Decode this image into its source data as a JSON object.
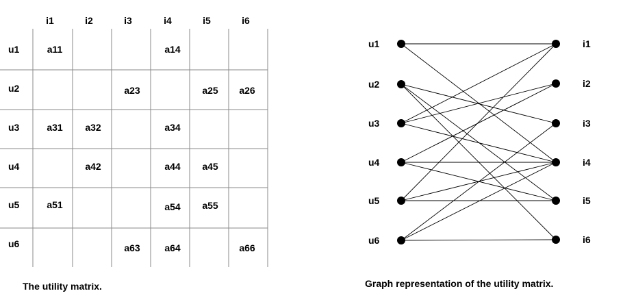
{
  "matrix": {
    "column_labels": [
      "i1",
      "i2",
      "i3",
      "i4",
      "i5",
      "i6"
    ],
    "row_labels": [
      "u1",
      "u2",
      "u3",
      "u4",
      "u5",
      "u6"
    ],
    "cells": [
      [
        "a11",
        "",
        "",
        "a14",
        "",
        ""
      ],
      [
        "",
        "",
        "a23",
        "",
        "a25",
        "a26"
      ],
      [
        "a31",
        "a32",
        "",
        "a34",
        "",
        ""
      ],
      [
        "",
        "a42",
        "",
        "a44",
        "a45",
        ""
      ],
      [
        "a51",
        "",
        "",
        "a54",
        "a55",
        ""
      ],
      [
        "",
        "",
        "a63",
        "a64",
        "",
        "a66"
      ]
    ],
    "caption": "The utility matrix."
  },
  "graph": {
    "user_nodes": [
      "u1",
      "u2",
      "u3",
      "u4",
      "u5",
      "u6"
    ],
    "item_nodes": [
      "i1",
      "i2",
      "i3",
      "i4",
      "i5",
      "i6"
    ],
    "edges": [
      [
        "u1",
        "i1"
      ],
      [
        "u1",
        "i4"
      ],
      [
        "u2",
        "i3"
      ],
      [
        "u2",
        "i5"
      ],
      [
        "u2",
        "i6"
      ],
      [
        "u3",
        "i1"
      ],
      [
        "u3",
        "i2"
      ],
      [
        "u3",
        "i4"
      ],
      [
        "u4",
        "i2"
      ],
      [
        "u4",
        "i4"
      ],
      [
        "u4",
        "i5"
      ],
      [
        "u5",
        "i1"
      ],
      [
        "u5",
        "i4"
      ],
      [
        "u5",
        "i5"
      ],
      [
        "u6",
        "i3"
      ],
      [
        "u6",
        "i4"
      ],
      [
        "u6",
        "i6"
      ]
    ],
    "caption": "Graph representation of the utility matrix."
  }
}
